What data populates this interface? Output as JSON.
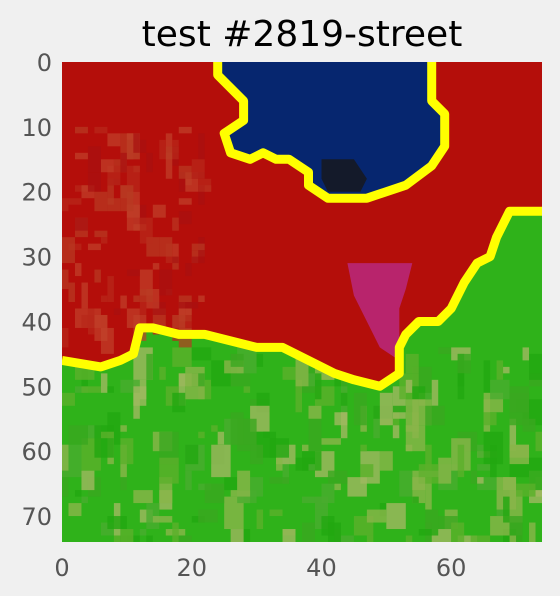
{
  "title": "test #2819-street",
  "chart_data": {
    "type": "heatmap",
    "title": "test #2819-street",
    "xlabel": "",
    "ylabel": "",
    "x_ticks": [
      "0",
      "20",
      "40",
      "60"
    ],
    "y_ticks": [
      "0",
      "10",
      "20",
      "30",
      "40",
      "50",
      "60",
      "70"
    ],
    "xlim": [
      0,
      74
    ],
    "ylim": [
      0,
      74
    ],
    "grid": false,
    "grid_size": 74,
    "description_regions": [
      {
        "name": "dark-blue region",
        "color": "#06266f"
      },
      {
        "name": "red region",
        "color": "#b40e0a"
      },
      {
        "name": "magenta region",
        "color": "#b8246c"
      },
      {
        "name": "green region",
        "color": "#2fb21a"
      },
      {
        "name": "boundary",
        "color": "#ffff00"
      }
    ],
    "polygons": {
      "blue": [
        [
          24,
          0
        ],
        [
          57,
          0
        ],
        [
          57,
          6
        ],
        [
          59,
          8
        ],
        [
          59,
          13
        ],
        [
          57,
          16
        ],
        [
          53,
          19
        ],
        [
          47,
          21
        ],
        [
          41,
          21
        ],
        [
          38,
          19
        ],
        [
          38,
          17
        ],
        [
          35,
          15
        ],
        [
          33,
          15
        ],
        [
          31,
          14
        ],
        [
          29,
          15
        ],
        [
          26,
          14
        ],
        [
          25,
          11
        ],
        [
          28,
          9
        ],
        [
          28,
          6
        ],
        [
          24,
          2
        ]
      ],
      "red": [
        [
          0,
          0
        ],
        [
          74,
          0
        ],
        [
          74,
          23
        ],
        [
          69,
          23
        ],
        [
          67,
          27
        ],
        [
          66,
          30
        ],
        [
          64,
          31
        ],
        [
          62,
          34
        ],
        [
          60,
          38
        ],
        [
          58,
          40
        ],
        [
          55,
          40
        ],
        [
          53,
          42
        ],
        [
          52,
          44
        ],
        [
          52,
          48
        ],
        [
          49,
          50
        ],
        [
          45,
          49
        ],
        [
          42,
          48
        ],
        [
          38,
          46
        ],
        [
          34,
          44
        ],
        [
          30,
          44
        ],
        [
          26,
          43
        ],
        [
          22,
          42
        ],
        [
          18,
          42
        ],
        [
          14,
          41
        ],
        [
          12,
          41
        ],
        [
          11,
          45
        ],
        [
          9,
          46
        ],
        [
          6,
          47
        ],
        [
          0,
          46
        ]
      ],
      "magenta": [
        [
          44,
          31
        ],
        [
          54,
          31
        ],
        [
          53,
          35
        ],
        [
          52,
          38
        ],
        [
          52,
          46
        ],
        [
          49,
          44
        ],
        [
          47,
          40
        ],
        [
          45,
          36
        ]
      ],
      "dark_patch": [
        [
          40,
          15
        ],
        [
          45,
          15
        ],
        [
          47,
          18
        ],
        [
          46,
          20
        ],
        [
          41,
          20
        ],
        [
          40,
          18
        ]
      ],
      "boundary_blue": [
        [
          24,
          0
        ],
        [
          24,
          2
        ],
        [
          28,
          6
        ],
        [
          28,
          9
        ],
        [
          25,
          11
        ],
        [
          26,
          14
        ],
        [
          29,
          15
        ],
        [
          31,
          14
        ],
        [
          33,
          15
        ],
        [
          35,
          15
        ],
        [
          38,
          17
        ],
        [
          38,
          19
        ],
        [
          41,
          21
        ],
        [
          47,
          21
        ],
        [
          53,
          19
        ],
        [
          57,
          16
        ],
        [
          59,
          13
        ],
        [
          59,
          8
        ],
        [
          57,
          6
        ],
        [
          57,
          0
        ]
      ],
      "boundary_green": [
        [
          0,
          46
        ],
        [
          6,
          47
        ],
        [
          9,
          46
        ],
        [
          11,
          45
        ],
        [
          12,
          41
        ],
        [
          14,
          41
        ],
        [
          18,
          42
        ],
        [
          22,
          42
        ],
        [
          26,
          43
        ],
        [
          30,
          44
        ],
        [
          34,
          44
        ],
        [
          38,
          46
        ],
        [
          42,
          48
        ],
        [
          45,
          49
        ],
        [
          49,
          50
        ],
        [
          52,
          48
        ],
        [
          52,
          44
        ],
        [
          53,
          42
        ],
        [
          55,
          40
        ],
        [
          58,
          40
        ],
        [
          60,
          38
        ],
        [
          62,
          34
        ],
        [
          64,
          31
        ],
        [
          66,
          30
        ],
        [
          67,
          27
        ],
        [
          69,
          23
        ],
        [
          74,
          23
        ]
      ]
    }
  }
}
